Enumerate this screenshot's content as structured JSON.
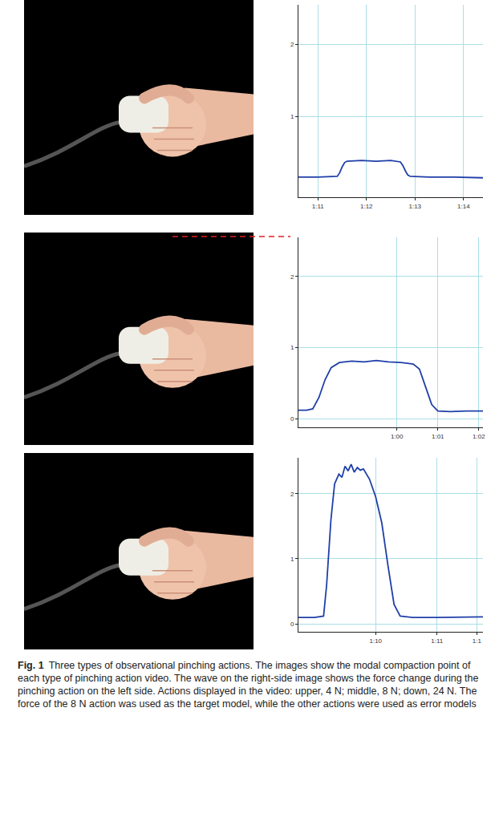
{
  "chart_data": [
    {
      "type": "line",
      "grid": true,
      "color": "#1f3fa8",
      "x": [
        70.6,
        71.0,
        71.4,
        71.45,
        71.5,
        71.55,
        71.6,
        71.9,
        72.2,
        72.5,
        72.7,
        72.75,
        72.8,
        72.85,
        72.9,
        73.3,
        73.8,
        74.4
      ],
      "values": [
        0.16,
        0.16,
        0.17,
        0.22,
        0.3,
        0.36,
        0.38,
        0.39,
        0.38,
        0.39,
        0.37,
        0.32,
        0.25,
        0.19,
        0.17,
        0.16,
        0.16,
        0.15
      ],
      "xlim": [
        70.6,
        74.4
      ],
      "ylim": [
        -0.12,
        2.55
      ],
      "xticks": [
        {
          "value": 71,
          "label": "1:11"
        },
        {
          "value": 72,
          "label": "1:12"
        },
        {
          "value": 73,
          "label": "1:13"
        },
        {
          "value": 74,
          "label": "1:14"
        }
      ],
      "yticks": [
        1,
        2
      ]
    },
    {
      "type": "line",
      "grid": true,
      "color": "#1f3fa8",
      "x": [
        57.6,
        57.8,
        57.95,
        58.1,
        58.25,
        58.4,
        58.6,
        58.9,
        59.2,
        59.5,
        59.8,
        60.1,
        60.4,
        60.55,
        60.7,
        60.85,
        61.0,
        61.3,
        61.7,
        62.1
      ],
      "values": [
        0.12,
        0.12,
        0.14,
        0.3,
        0.55,
        0.72,
        0.79,
        0.81,
        0.8,
        0.82,
        0.8,
        0.79,
        0.77,
        0.7,
        0.45,
        0.2,
        0.11,
        0.1,
        0.11,
        0.11
      ],
      "xlim": [
        57.6,
        62.1
      ],
      "ylim": [
        -0.12,
        2.55
      ],
      "xticks": [
        {
          "value": 60,
          "label": "1:00"
        },
        {
          "value": 61,
          "label": "1:01"
        },
        {
          "value": 62,
          "label": "1:02"
        }
      ],
      "yticks": [
        0,
        1,
        2
      ]
    },
    {
      "type": "line",
      "grid": true,
      "color": "#1f3fa8",
      "x": [
        68.74,
        69.0,
        69.15,
        69.2,
        69.27,
        69.33,
        69.4,
        69.45,
        69.5,
        69.55,
        69.6,
        69.65,
        69.7,
        69.75,
        69.8,
        69.85,
        69.9,
        70.0,
        70.1,
        70.2,
        70.3,
        70.4,
        70.6,
        71.0,
        71.4,
        71.75
      ],
      "values": [
        0.1,
        0.1,
        0.12,
        0.6,
        1.6,
        2.15,
        2.3,
        2.25,
        2.42,
        2.35,
        2.45,
        2.33,
        2.4,
        2.36,
        2.38,
        2.3,
        2.22,
        1.95,
        1.55,
        0.9,
        0.3,
        0.12,
        0.1,
        0.1,
        0.11,
        0.11
      ],
      "xlim": [
        68.74,
        71.75
      ],
      "ylim": [
        -0.12,
        2.55
      ],
      "xticks": [
        {
          "value": 70,
          "label": "1:10"
        },
        {
          "value": 71,
          "label": "1:11"
        },
        {
          "value": 71.65,
          "label": "1:1"
        }
      ],
      "yticks": [
        0,
        1,
        2
      ]
    }
  ],
  "figure": {
    "caption_label": "Fig. 1",
    "caption": "Three types of observational pinching actions. The images show the modal compaction point of each type of pinching action video. The wave on the right-side image shows the force change during the pinching action on the left side. Actions displayed in the video: upper, 4 N; middle, 8 N; down, 24 N. The force of the 8 N action was used as the target model, while the other actions were used as error models"
  }
}
